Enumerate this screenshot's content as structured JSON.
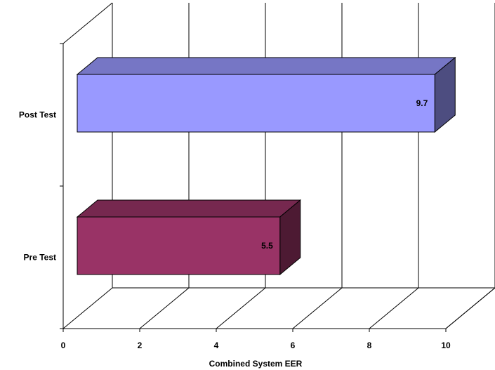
{
  "chart_data": {
    "type": "bar",
    "orientation": "horizontal",
    "three_d": true,
    "categories": [
      "Post Test",
      "Pre Test"
    ],
    "series": [
      {
        "values": [
          9.7,
          5.5
        ]
      }
    ],
    "bar_colors": [
      "#9999ff",
      "#993366"
    ],
    "bar_top_colors": [
      "#7676c5",
      "#76284f"
    ],
    "bar_side_colors": [
      "#4d4d80",
      "#4d1a33"
    ],
    "data_labels": [
      "9.7",
      "5.5"
    ],
    "x_ticks": [
      "0",
      "2",
      "4",
      "6",
      "8",
      "10"
    ],
    "xlim": [
      0,
      10
    ],
    "xlabel": "Combined System EER",
    "grid": true,
    "legend": "none"
  }
}
